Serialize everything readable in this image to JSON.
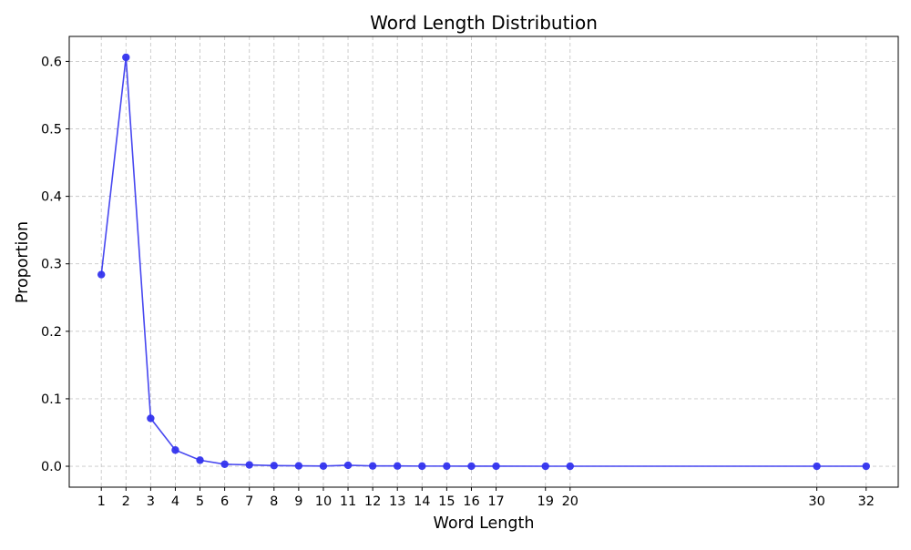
{
  "chart_data": {
    "type": "line",
    "title": "Word Length Distribution",
    "xlabel": "Word Length",
    "ylabel": "Proportion",
    "x": [
      1,
      2,
      3,
      4,
      5,
      6,
      7,
      8,
      9,
      10,
      11,
      12,
      13,
      14,
      15,
      16,
      17,
      19,
      20,
      30,
      32
    ],
    "series": [
      {
        "values": [
          0.284,
          0.606,
          0.071,
          0.024,
          0.009,
          0.003,
          0.002,
          0.001,
          0.0006,
          0.0003,
          0.0015,
          0.0005,
          0.0004,
          0.0002,
          0.0002,
          0.0001,
          0.0001,
          5e-05,
          5e-05,
          2e-05,
          2e-05
        ],
        "color": "#3333ee"
      }
    ],
    "xticks": [
      "1",
      "2",
      "3",
      "4",
      "5",
      "6",
      "7",
      "8",
      "9",
      "10",
      "11",
      "12",
      "13",
      "14",
      "15",
      "16",
      "17",
      "19",
      "20",
      "30",
      "32"
    ],
    "yticks": [
      "0.0",
      "0.1",
      "0.2",
      "0.3",
      "0.4",
      "0.5",
      "0.6"
    ],
    "xlim": [
      -0.3,
      33.3
    ],
    "ylim": [
      -0.031,
      0.637
    ],
    "grid": true
  }
}
